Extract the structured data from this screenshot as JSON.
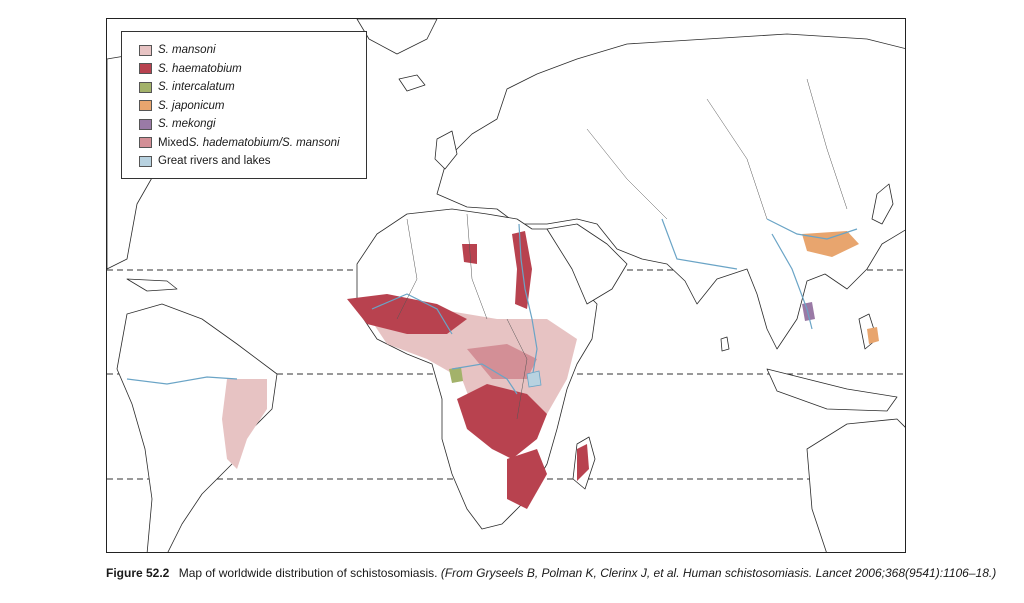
{
  "legend": {
    "items": [
      {
        "key": "mansoni",
        "prefix": "",
        "italic": "S. mansoni",
        "color": "#e7c3c3"
      },
      {
        "key": "haematobium",
        "prefix": "",
        "italic": "S. haematobium",
        "color": "#b8424f"
      },
      {
        "key": "intercalatum",
        "prefix": "",
        "italic": "S. intercalatum",
        "color": "#a3b26a"
      },
      {
        "key": "japonicum",
        "prefix": "",
        "italic": "S. japonicum",
        "color": "#e8a56e"
      },
      {
        "key": "mekongi",
        "prefix": "",
        "italic": "S. mekongi",
        "color": "#9a7aa6"
      },
      {
        "key": "mixed",
        "prefix": "Mixed ",
        "italic": "S. hadematobium/S. mansoni",
        "color": "#d38f96"
      },
      {
        "key": "rivers",
        "prefix": "Great rivers and lakes",
        "italic": "",
        "color": "#b8d2e0"
      }
    ]
  },
  "caption": {
    "label": "Figure 52.2",
    "text": "Map of worldwide distribution of schistosomiasis.",
    "source": "(From Gryseels B, Polman K, Clerinx J, et al. Human schistosomiasis. Lancet 2006;368(9541):1106–18.)"
  },
  "colors": {
    "land_fill": "#ffffff",
    "border": "#2b2b2b",
    "river": "#6aa4c6",
    "lake": "#b8d2e0",
    "dashed_line": "#333333"
  }
}
